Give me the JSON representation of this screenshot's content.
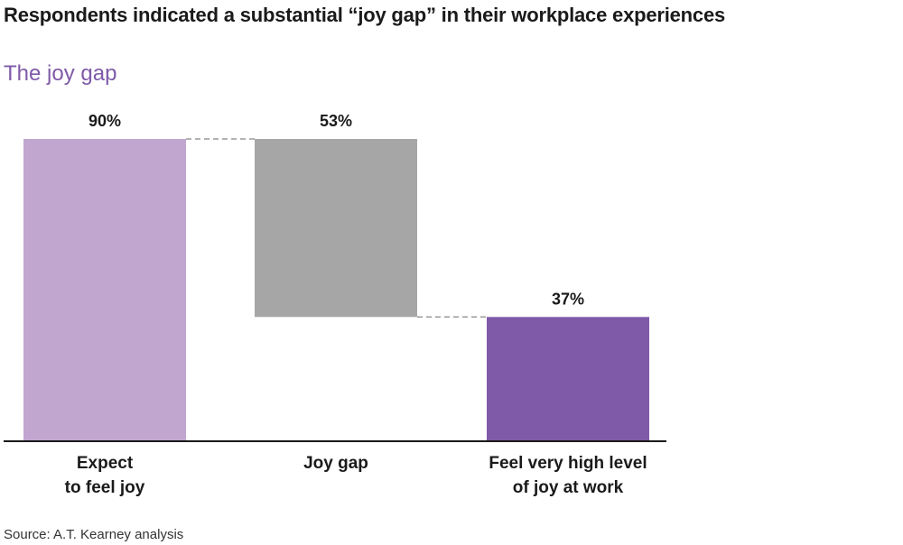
{
  "headline": "Respondents indicated a substantial “joy gap” in their workplace experiences",
  "source": "Source: A.T. Kearney analysis",
  "colors": {
    "subtitle": "#7f5aa8",
    "axis": "#1a1a1a",
    "connector": "#9a9a9a"
  },
  "chart_data": {
    "type": "bar",
    "variant": "waterfall",
    "title": "The joy gap",
    "xlabel": "",
    "ylabel": "",
    "ylim": [
      0,
      90
    ],
    "grid": false,
    "legend": "none",
    "bars": [
      {
        "category_lines": [
          "Expect",
          "to feel joy"
        ],
        "value": 90,
        "base": 0,
        "label": "90%",
        "color": "#c1a6cf"
      },
      {
        "category_lines": [
          "Joy gap"
        ],
        "value": 53,
        "base": 37,
        "label": "53%",
        "color": "#a6a6a6"
      },
      {
        "category_lines": [
          "Feel very high level",
          "of joy at work"
        ],
        "value": 37,
        "base": 0,
        "label": "37%",
        "color": "#7f5aa8"
      }
    ]
  }
}
